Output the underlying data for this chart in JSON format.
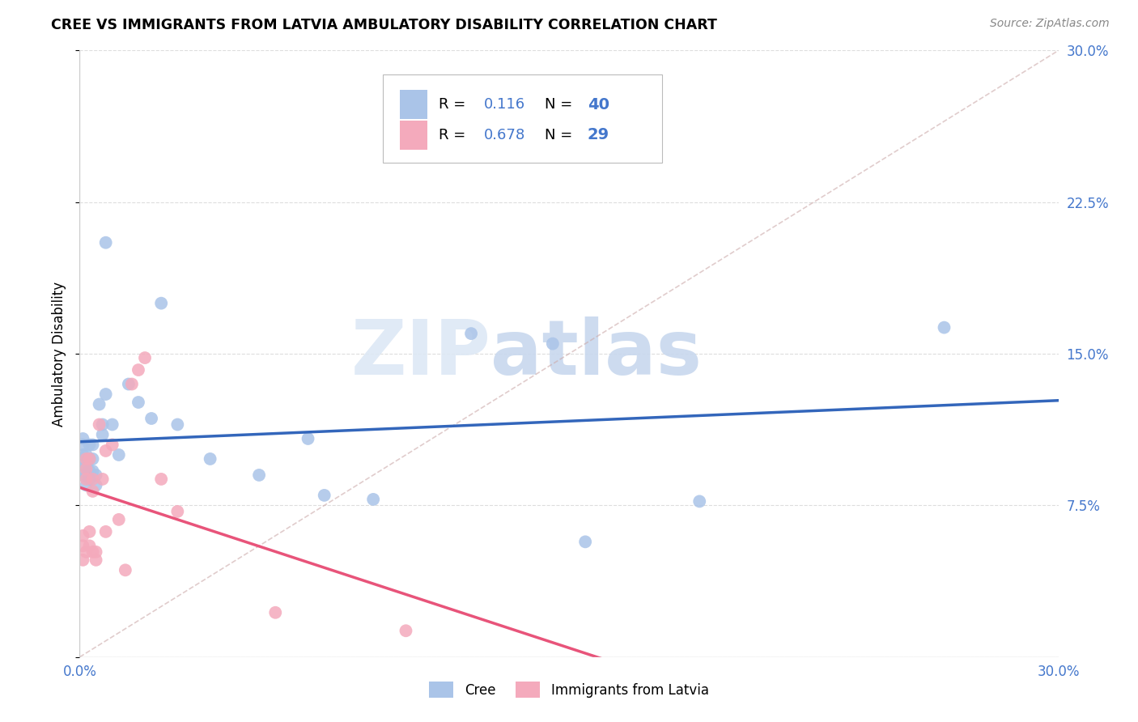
{
  "title": "CREE VS IMMIGRANTS FROM LATVIA AMBULATORY DISABILITY CORRELATION CHART",
  "source": "Source: ZipAtlas.com",
  "ylabel": "Ambulatory Disability",
  "xlim": [
    0,
    0.3
  ],
  "ylim": [
    0,
    0.3
  ],
  "cree_R": 0.116,
  "cree_N": 40,
  "latvia_R": 0.678,
  "latvia_N": 29,
  "cree_color": "#aac4e8",
  "latvia_color": "#f4aabc",
  "cree_line_color": "#3366bb",
  "latvia_line_color": "#e8547a",
  "legend_label_cree": "Cree",
  "legend_label_latvia": "Immigrants from Latvia",
  "watermark_zip": "ZIP",
  "watermark_atlas": "atlas",
  "tick_color": "#4477cc",
  "cree_x": [
    0.001,
    0.001,
    0.001,
    0.001,
    0.001,
    0.002,
    0.002,
    0.002,
    0.002,
    0.003,
    0.003,
    0.003,
    0.003,
    0.004,
    0.004,
    0.004,
    0.005,
    0.005,
    0.006,
    0.007,
    0.007,
    0.008,
    0.008,
    0.01,
    0.012,
    0.015,
    0.018,
    0.022,
    0.025,
    0.03,
    0.04,
    0.055,
    0.07,
    0.075,
    0.09,
    0.12,
    0.145,
    0.155,
    0.19,
    0.265
  ],
  "cree_y": [
    0.108,
    0.105,
    0.1,
    0.095,
    0.09,
    0.1,
    0.095,
    0.09,
    0.085,
    0.105,
    0.098,
    0.092,
    0.088,
    0.105,
    0.098,
    0.092,
    0.09,
    0.085,
    0.125,
    0.115,
    0.11,
    0.205,
    0.13,
    0.115,
    0.1,
    0.135,
    0.126,
    0.118,
    0.175,
    0.115,
    0.098,
    0.09,
    0.108,
    0.08,
    0.078,
    0.16,
    0.155,
    0.057,
    0.077,
    0.163
  ],
  "latvia_x": [
    0.001,
    0.001,
    0.001,
    0.002,
    0.002,
    0.002,
    0.002,
    0.003,
    0.003,
    0.003,
    0.004,
    0.004,
    0.004,
    0.005,
    0.005,
    0.006,
    0.007,
    0.008,
    0.008,
    0.01,
    0.012,
    0.014,
    0.016,
    0.018,
    0.02,
    0.025,
    0.03,
    0.06,
    0.1
  ],
  "latvia_y": [
    0.06,
    0.055,
    0.048,
    0.098,
    0.093,
    0.088,
    0.052,
    0.098,
    0.062,
    0.055,
    0.052,
    0.088,
    0.082,
    0.052,
    0.048,
    0.115,
    0.088,
    0.102,
    0.062,
    0.105,
    0.068,
    0.043,
    0.135,
    0.142,
    0.148,
    0.088,
    0.072,
    0.022,
    0.013
  ]
}
